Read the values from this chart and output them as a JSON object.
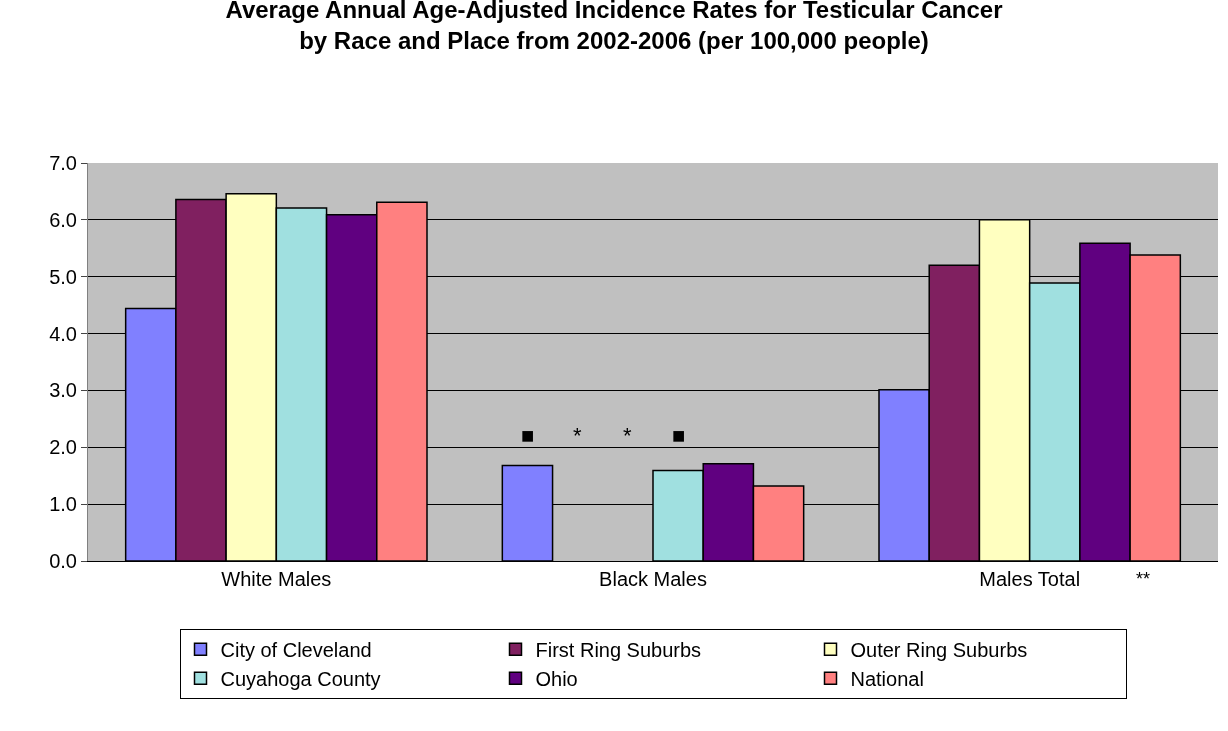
{
  "chart_data": {
    "type": "bar",
    "title": "Average Annual Age-Adjusted Incidence Rates for Testicular Cancer\nby Race and Place from 2002-2006 (per 100,000 people)",
    "categories": [
      "White Males",
      "Black Males",
      "Males Total"
    ],
    "series": [
      {
        "name": "City of Cleveland",
        "color": "#8080ff",
        "values": [
          4.44,
          1.68,
          3.01
        ],
        "value_labels": [
          null,
          "■",
          null
        ]
      },
      {
        "name": "First Ring Suburbs",
        "color": "#802060",
        "values": [
          6.36,
          null,
          5.2
        ],
        "value_labels": [
          null,
          "*",
          null
        ]
      },
      {
        "name": "Outer Ring Suburbs",
        "color": "#ffffc0",
        "values": [
          6.46,
          null,
          6.0
        ],
        "value_labels": [
          null,
          "*",
          null
        ]
      },
      {
        "name": "Cuyahoga County",
        "color": "#a0e0e0",
        "values": [
          6.21,
          1.59,
          4.89
        ],
        "value_labels": [
          null,
          "■",
          null
        ]
      },
      {
        "name": "Ohio",
        "color": "#600080",
        "values": [
          6.09,
          1.71,
          5.59
        ]
      },
      {
        "name": "National",
        "color": "#ff8080",
        "values": [
          6.31,
          1.32,
          5.38
        ]
      }
    ],
    "ylim": [
      0,
      7
    ],
    "yticks": [
      {
        "value": 0,
        "label": "0.0"
      },
      {
        "value": 1,
        "label": "1.0"
      },
      {
        "value": 2,
        "label": "2.0"
      },
      {
        "value": 3,
        "label": "3.0"
      },
      {
        "value": 4,
        "label": "4.0"
      },
      {
        "value": 5,
        "label": "5.0"
      },
      {
        "value": 6,
        "label": "6.0"
      },
      {
        "value": 7,
        "label": "7.0"
      }
    ],
    "grid": "y",
    "legend": "bottom",
    "annotations": [
      "**"
    ]
  }
}
